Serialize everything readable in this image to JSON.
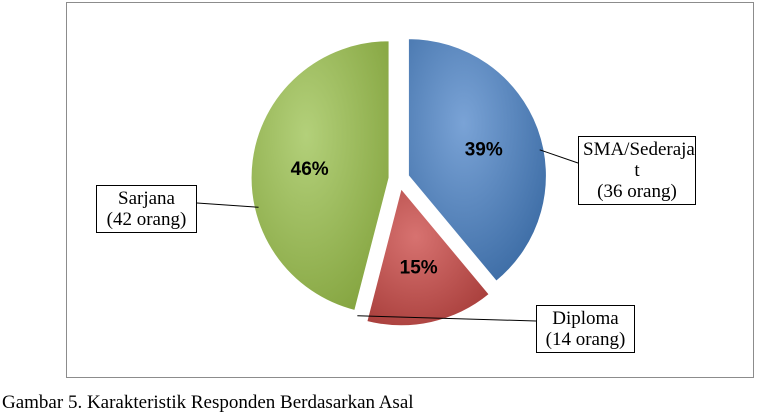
{
  "chart_data": {
    "type": "pie",
    "slices": [
      {
        "label_lines": [
          "SMA/Sederaja",
          "t",
          "(36 orang)"
        ],
        "value": 39,
        "percent_label": "39%",
        "count": 36,
        "color": "#4f81bd",
        "exploded": true
      },
      {
        "label_lines": [
          "Diploma",
          "(14 orang)"
        ],
        "value": 15,
        "percent_label": "15%",
        "count": 14,
        "color": "#c0504d",
        "exploded": true
      },
      {
        "label_lines": [
          "Sarjana",
          "(42 orang)"
        ],
        "value": 46,
        "percent_label": "46%",
        "count": 42,
        "color": "#9bbb59",
        "exploded": true
      }
    ],
    "start_angle": "12 o'clock, clockwise",
    "legend": "none"
  },
  "caption": "Gambar 5. Karakteristik Responden Berdasarkan Asal"
}
